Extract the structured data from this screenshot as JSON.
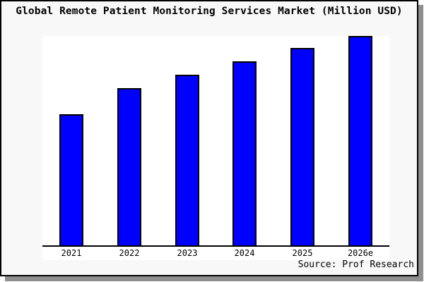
{
  "header": {
    "title": "Global Remote Patient Monitoring Services Market (Million USD)"
  },
  "footer": {
    "source": "Source: Prof Research"
  },
  "colors": {
    "bar_fill": "#0000ff",
    "bar_border": "#000000",
    "figure_background": "#f8f8f8",
    "plot_background": "#ffffff",
    "frame_border": "#000000",
    "frame_shadow": "#8f8f8f",
    "text": "#000000"
  },
  "chart_data": {
    "type": "bar",
    "title": "Global Remote Patient Monitoring Services Market (Million USD)",
    "categories": [
      "2021",
      "2022",
      "2023",
      "2024",
      "2025",
      "2026e"
    ],
    "values": [
      62.6,
      75.1,
      81.5,
      87.9,
      94.3,
      100
    ],
    "value_note": "Chart shows no y-axis ticks or data labels; values are bar heights as a relative index with 2026e = 100",
    "xlabel": "",
    "ylabel": "",
    "ylim": [
      0,
      100
    ],
    "grid": false,
    "legend": false,
    "bar_color": "#0000ff",
    "annotations": [
      "Source: Prof Research"
    ]
  }
}
